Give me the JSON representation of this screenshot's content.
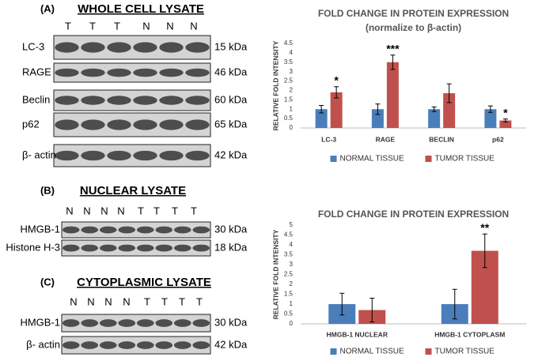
{
  "blots": [
    {
      "label": "(A)",
      "title": "WHOLE CELL LYSATE",
      "lanes": [
        "T",
        "T",
        "T",
        "N",
        "N",
        "N"
      ],
      "rows": [
        {
          "name": "LC-3",
          "size": "15 kDa"
        },
        {
          "name": "RAGE",
          "size": "46 kDa"
        },
        {
          "name": "Beclin",
          "size": "60 kDa"
        },
        {
          "name": "p62",
          "size": "65 kDa"
        },
        {
          "name": "β- actin",
          "size": "42 kDa"
        }
      ]
    },
    {
      "label": "(B)",
      "title": "NUCLEAR LYSATE",
      "lanes": [
        "N",
        "N",
        "N",
        "N",
        "T",
        "T",
        "T",
        "T"
      ],
      "rows": [
        {
          "name": "HMGB-1",
          "size": "30 kDa"
        },
        {
          "name": "Histone H-3",
          "size": "18 kDa"
        }
      ]
    },
    {
      "label": "(C)",
      "title": "CYTOPLASMIC LYSATE",
      "lanes": [
        "N",
        "N",
        "N",
        "N",
        "T",
        "T",
        "T",
        "T"
      ],
      "rows": [
        {
          "name": "HMGB-1",
          "size": "30 kDa"
        },
        {
          "name": "β- actin",
          "size": "42 kDa"
        }
      ]
    }
  ],
  "chart_data": [
    {
      "type": "bar",
      "title": "FOLD CHANGE IN PROTEIN EXPRESSION",
      "subtitle": "(normalize to β-actin)",
      "y_label": "RELATIVE FOLD INTENSITY",
      "categories": [
        "LC-3",
        "RAGE",
        "BECLIN",
        "p62"
      ],
      "series": [
        {
          "name": "NORMAL TISSUE",
          "color": "#4a7ebb",
          "values": [
            1,
            1,
            1,
            1
          ],
          "errors": [
            0.2,
            0.28,
            0.12,
            0.17
          ]
        },
        {
          "name": "TUMOR TISSUE",
          "color": "#c0504d",
          "values": [
            1.9,
            3.5,
            1.85,
            0.4
          ],
          "errors": [
            0.3,
            0.38,
            0.5,
            0.08
          ]
        }
      ],
      "annotations": [
        {
          "text": "*",
          "category": "LC-3"
        },
        {
          "text": "***",
          "category": "RAGE"
        },
        {
          "text": "*",
          "category": "p62"
        }
      ],
      "ylim": [
        0,
        4.5
      ],
      "yticks": [
        0,
        0.5,
        1,
        1.5,
        2,
        2.5,
        3,
        3.5,
        4,
        4.5
      ],
      "legend": "bottom"
    },
    {
      "type": "bar",
      "title": "FOLD CHANGE IN PROTEIN EXPRESSION",
      "y_label": "RELATIVE FOLD INTENSITY",
      "categories": [
        "HMGB-1 NUCLEAR",
        "HMGB-1 CYTOPLASM"
      ],
      "series": [
        {
          "name": "NORMAL TISSUE",
          "color": "#4a7ebb",
          "values": [
            1,
            1
          ],
          "errors": [
            0.55,
            0.75
          ]
        },
        {
          "name": "TUMOR TISSUE",
          "color": "#c0504d",
          "values": [
            0.7,
            3.7
          ],
          "errors": [
            0.6,
            0.85
          ]
        }
      ],
      "annotations": [
        {
          "text": "**",
          "category": "HMGB-1 CYTOPLASM"
        }
      ],
      "ylim": [
        0,
        5
      ],
      "yticks": [
        0,
        0.5,
        1,
        1.5,
        2,
        2.5,
        3,
        3.5,
        4,
        4.5,
        5
      ],
      "legend": "bottom"
    }
  ]
}
